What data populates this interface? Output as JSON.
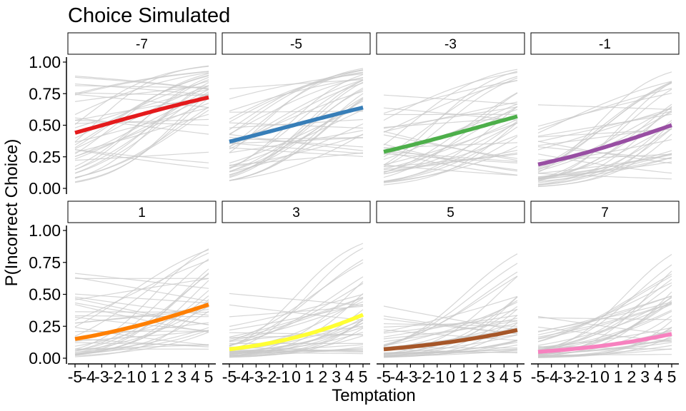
{
  "chart_data": {
    "type": "line",
    "title": "Choice Simulated",
    "xlabel": "Temptation",
    "ylabel": "P(Incorrect Choice)",
    "x_ticks": [
      -5,
      -4,
      -3,
      -2,
      -1,
      0,
      1,
      2,
      3,
      4,
      5
    ],
    "x_tick_labels": [
      "-5",
      "-4",
      "-3",
      "-2",
      "-1",
      "0",
      "1",
      "2",
      "3",
      "4",
      "5"
    ],
    "xlim": [
      -5,
      5
    ],
    "y_ticks": [
      0,
      0.25,
      0.5,
      0.75,
      1
    ],
    "y_tick_labels": [
      "0.00",
      "0.25",
      "0.50",
      "0.75",
      "1.00"
    ],
    "ylim": [
      0,
      1
    ],
    "grid": false,
    "layout": "facet grid 2 rows x 4 columns",
    "background_lines_color": "#c8c8c8",
    "background_lines_description": "many faint simulated individual curves per panel",
    "panels": [
      {
        "strip": "-7",
        "color": "#E41A1C",
        "x": [
          -5,
          5
        ],
        "y_start": 0.44,
        "y_end": 0.72
      },
      {
        "strip": "-5",
        "color": "#377EB8",
        "x": [
          -5,
          5
        ],
        "y_start": 0.37,
        "y_end": 0.64
      },
      {
        "strip": "-3",
        "color": "#4DAF4A",
        "x": [
          -5,
          5
        ],
        "y_start": 0.29,
        "y_end": 0.57
      },
      {
        "strip": "-1",
        "color": "#984EA3",
        "x": [
          -5,
          5
        ],
        "y_start": 0.19,
        "y_end": 0.5
      },
      {
        "strip": "1",
        "color": "#FF7F00",
        "x": [
          -5,
          5
        ],
        "y_start": 0.15,
        "y_end": 0.42
      },
      {
        "strip": "3",
        "color": "#FFFF33",
        "x": [
          -5,
          5
        ],
        "y_start": 0.07,
        "y_end": 0.34
      },
      {
        "strip": "5",
        "color": "#A65628",
        "x": [
          -5,
          5
        ],
        "y_start": 0.07,
        "y_end": 0.22
      },
      {
        "strip": "7",
        "color": "#F781BF",
        "x": [
          -5,
          5
        ],
        "y_start": 0.05,
        "y_end": 0.19
      }
    ]
  }
}
